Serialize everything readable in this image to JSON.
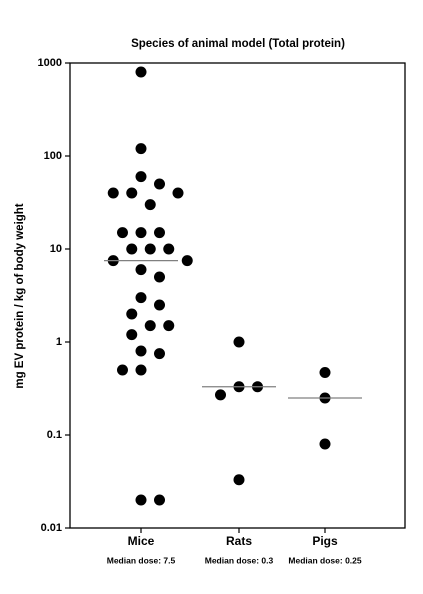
{
  "chart_data": {
    "type": "strip",
    "title": "Species of animal model (Total protein)",
    "y_label": "mg EV protein / kg of body weight",
    "log_scale": true,
    "ylim": [
      0.01,
      1000
    ],
    "yticks": [
      0.01,
      0.1,
      1,
      10,
      100,
      1000
    ],
    "color": "#000000",
    "median_color": "#808080",
    "groups": [
      {
        "category": "Mice",
        "values": [
          800,
          120,
          60,
          50,
          40,
          40,
          40,
          30,
          15,
          15,
          15,
          10,
          10,
          10,
          7.5,
          7.5,
          6,
          5,
          3,
          2.5,
          2,
          1.5,
          1.5,
          1.2,
          0.8,
          0.75,
          0.5,
          0.5,
          0.02,
          0.02
        ],
        "median": 7.5,
        "median_label": "Median dose: 7.5"
      },
      {
        "category": "Rats",
        "values": [
          1,
          0.33,
          0.33,
          0.27,
          0.033
        ],
        "median": 0.33,
        "median_label": "Median dose: 0.3"
      },
      {
        "category": "Pigs",
        "values": [
          0.47,
          0.25,
          0.08
        ],
        "median": 0.25,
        "median_label": "Median dose: 0.25"
      }
    ]
  }
}
